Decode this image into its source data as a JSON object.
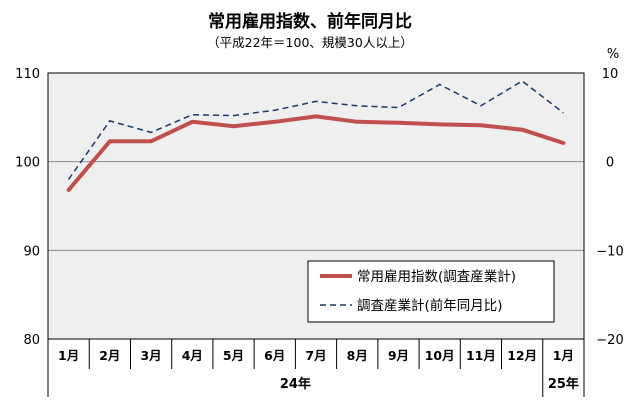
{
  "chart_data": {
    "type": "line",
    "title": "常用雇用指数、前年同月比",
    "subtitle": "（平成22年＝100、規模30人以上）",
    "categories": [
      "1月",
      "2月",
      "3月",
      "4月",
      "5月",
      "6月",
      "7月",
      "8月",
      "9月",
      "10月",
      "11月",
      "12月",
      "1月"
    ],
    "year_labels": [
      {
        "label": "24年",
        "from": 0,
        "to": 11
      },
      {
        "label": "25年",
        "from": 12,
        "to": 12
      }
    ],
    "y_left": {
      "min": 80,
      "max": 110,
      "ticks": [
        80,
        90,
        100,
        110
      ]
    },
    "y_right": {
      "unit": "%",
      "min": -20,
      "max": 10,
      "ticks": [
        -20,
        -10,
        0,
        10
      ]
    },
    "series": [
      {
        "name": "常用雇用指数(調査産業計)",
        "axis": "left",
        "style": "solid",
        "color": "#c0504d",
        "values": [
          96.8,
          102.3,
          102.3,
          104.5,
          104.0,
          104.5,
          105.1,
          104.5,
          104.4,
          104.2,
          104.1,
          103.6,
          102.1
        ]
      },
      {
        "name": "調査産業計(前年同月比)",
        "axis": "right",
        "style": "dashed",
        "color": "#1f3864",
        "values": [
          -2.0,
          4.6,
          3.3,
          5.3,
          5.2,
          5.8,
          6.8,
          6.3,
          6.1,
          8.7,
          6.3,
          9.1,
          5.5
        ]
      }
    ],
    "grid": true,
    "legend_position": "bottom-right"
  }
}
